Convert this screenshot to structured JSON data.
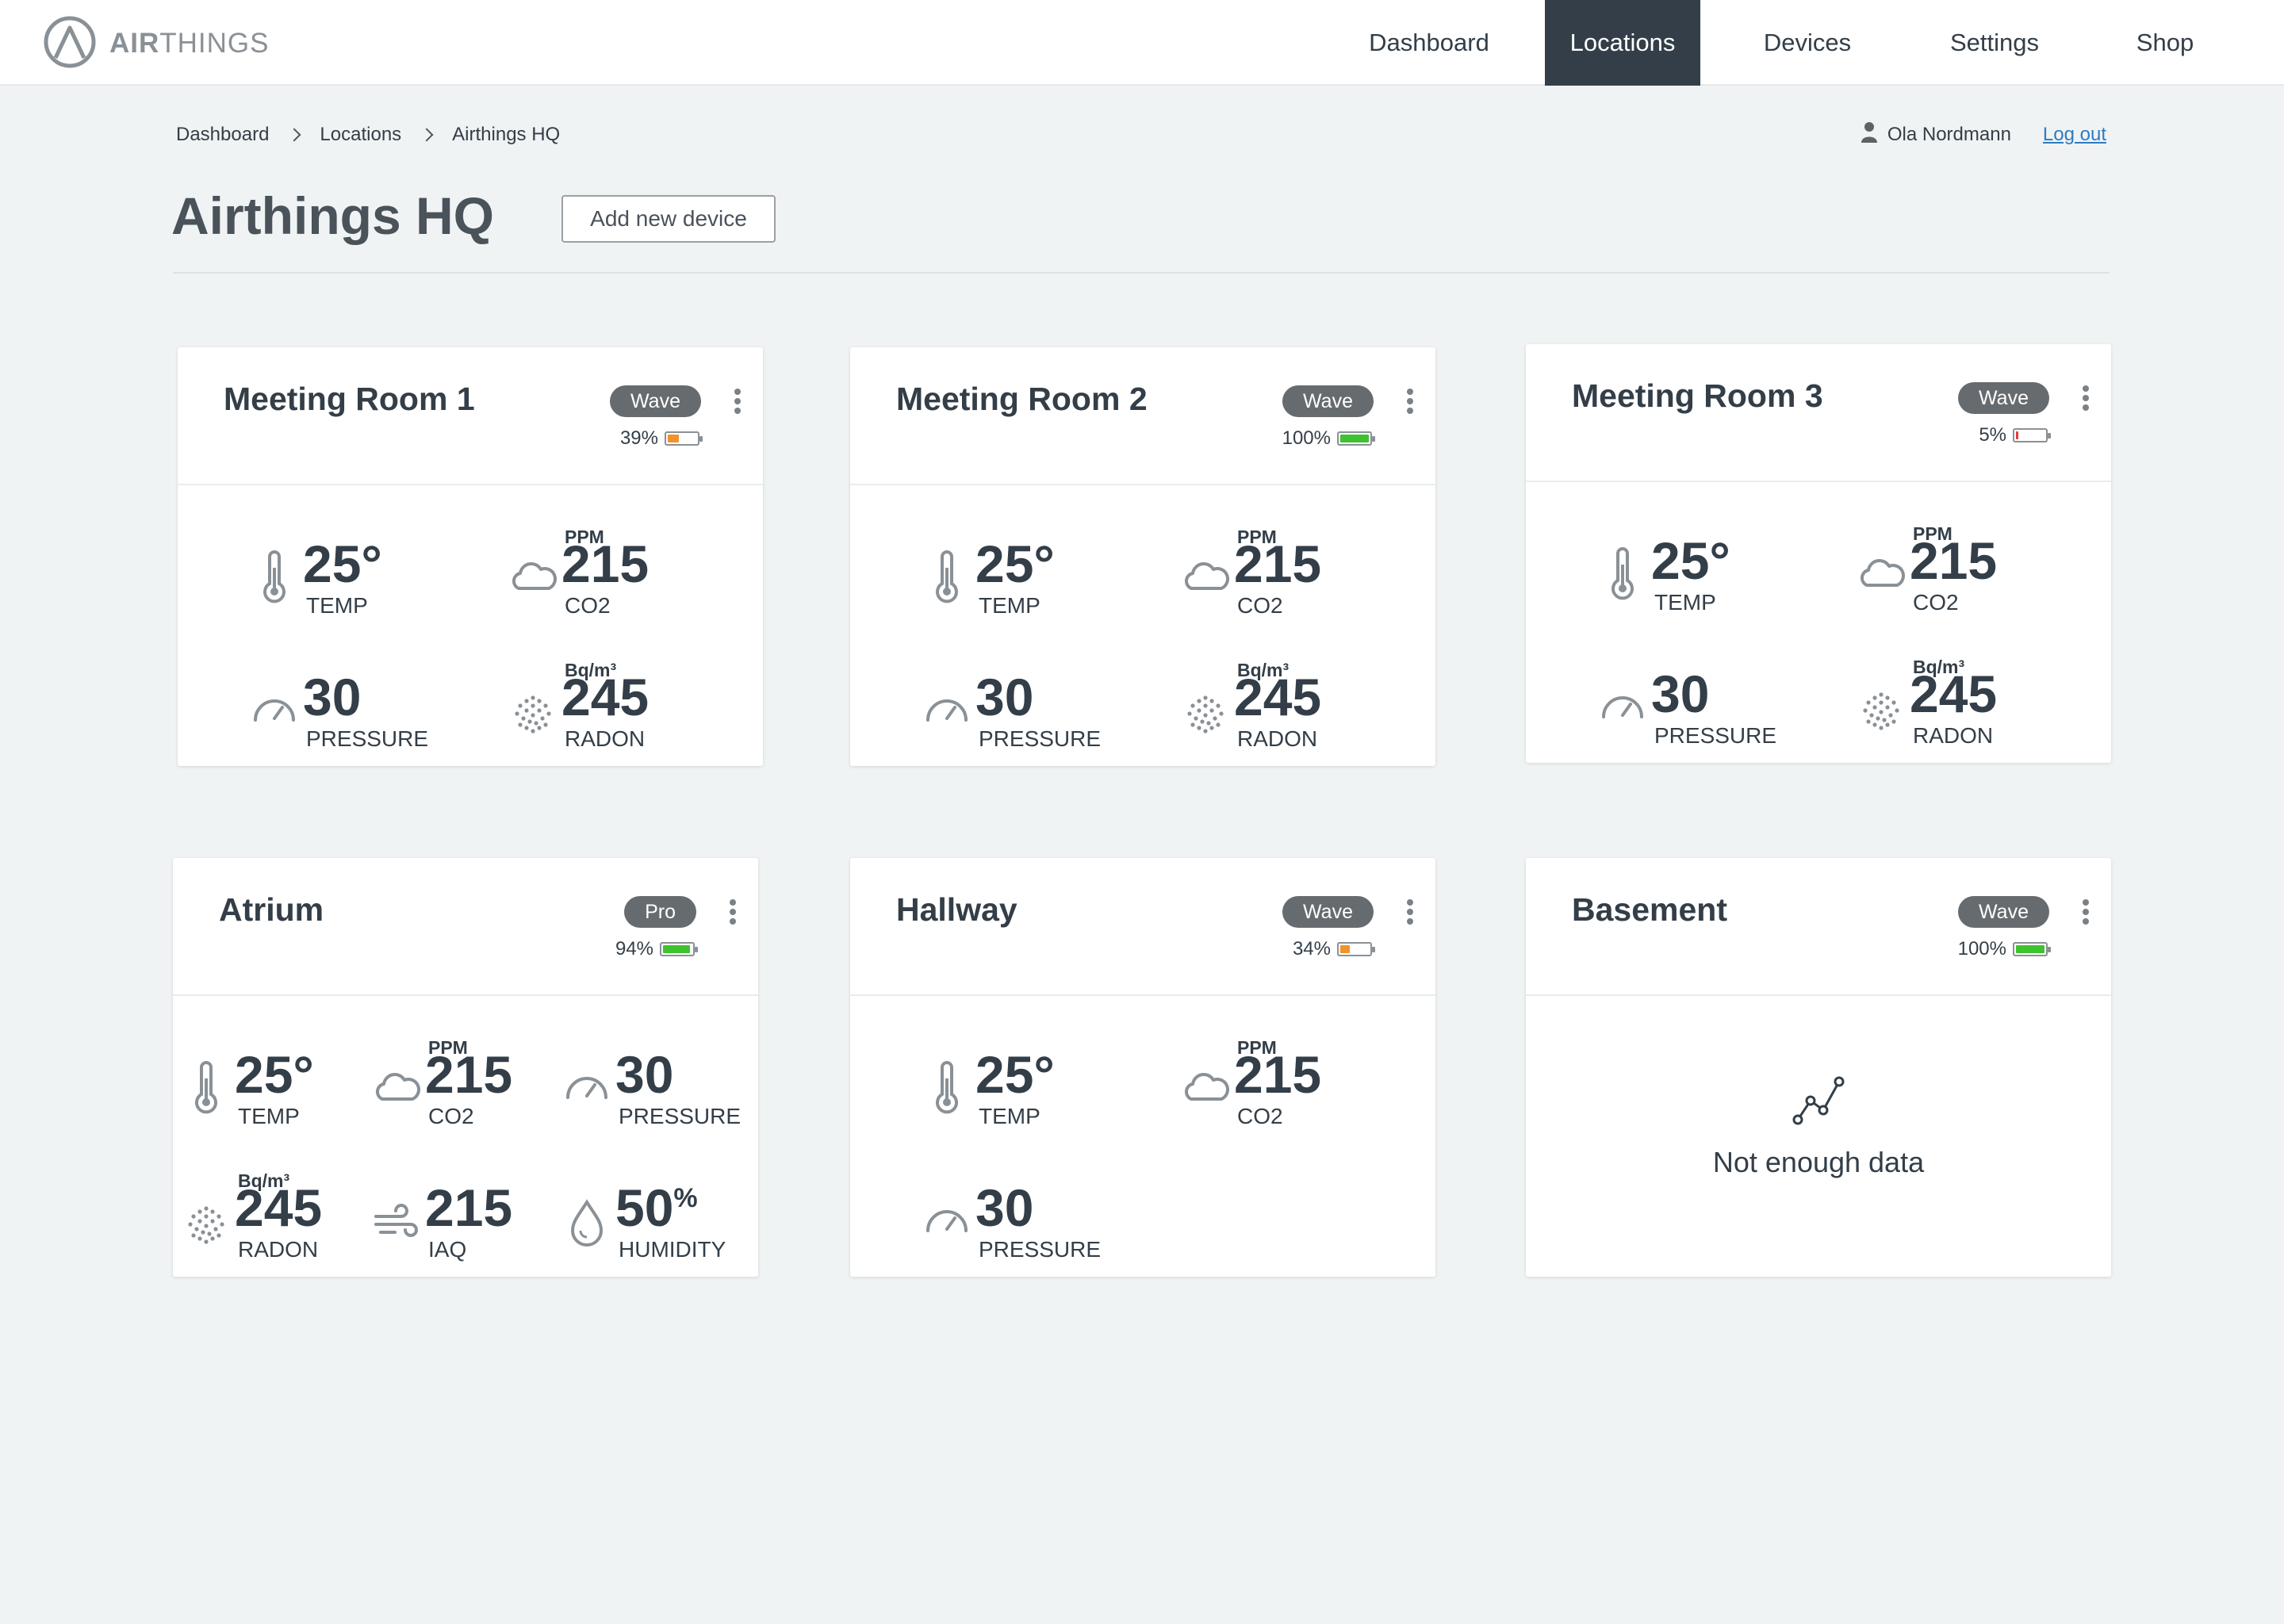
{
  "brand": {
    "logo_strong": "AIR",
    "logo_light": "THINGS"
  },
  "nav": {
    "items": [
      {
        "label": "Dashboard"
      },
      {
        "label": "Locations",
        "active": true
      },
      {
        "label": "Devices"
      },
      {
        "label": "Settings"
      },
      {
        "label": "Shop"
      }
    ]
  },
  "breadcrumb": [
    "Dashboard",
    "Locations",
    "Airthings HQ"
  ],
  "user": {
    "name": "Ola Nordmann",
    "logout_label": "Log out"
  },
  "page": {
    "title": "Airthings HQ",
    "add_device_label": "Add new device"
  },
  "cards": [
    {
      "title": "Meeting Room 1",
      "badge": "Wave",
      "battery_text": "39%",
      "battery_level": 0.39,
      "battery_color": "#f0932a",
      "temp": {
        "value": "25°",
        "label": "TEMP"
      },
      "co2": {
        "unit": "PPM",
        "value": "215",
        "label": "CO2"
      },
      "pressure": {
        "value": "30",
        "label": "PRESSURE"
      },
      "radon": {
        "unit": "Bq/m³",
        "value": "245",
        "label": "RADON"
      }
    },
    {
      "title": "Meeting Room 2",
      "badge": "Wave",
      "battery_text": "100%",
      "battery_level": 1.0,
      "battery_color": "#3fc22f",
      "temp": {
        "value": "25°",
        "label": "TEMP"
      },
      "co2": {
        "unit": "PPM",
        "value": "215",
        "label": "CO2"
      },
      "pressure": {
        "value": "30",
        "label": "PRESSURE"
      },
      "radon": {
        "unit": "Bq/m³",
        "value": "245",
        "label": "RADON"
      }
    },
    {
      "title": "Meeting Room 3",
      "badge": "Wave",
      "battery_text": "5%",
      "battery_level": 0.05,
      "battery_color": "#e23b3b",
      "temp": {
        "value": "25°",
        "label": "TEMP"
      },
      "co2": {
        "unit": "PPM",
        "value": "215",
        "label": "CO2"
      },
      "pressure": {
        "value": "30",
        "label": "PRESSURE"
      },
      "radon": {
        "unit": "Bq/m³",
        "value": "245",
        "label": "RADON"
      }
    },
    {
      "title": "Atrium",
      "badge": "Pro",
      "battery_text": "94%",
      "battery_level": 0.94,
      "battery_color": "#3fc22f",
      "temp": {
        "value": "25°",
        "label": "TEMP"
      },
      "co2": {
        "unit": "PPM",
        "value": "215",
        "label": "CO2"
      },
      "pressure": {
        "value": "30",
        "label": "PRESSURE"
      },
      "radon": {
        "unit": "Bq/m³",
        "value": "245",
        "label": "RADON"
      },
      "iaq": {
        "value": "215",
        "label": "IAQ"
      },
      "humidity": {
        "value": "50",
        "suffix": "%",
        "label": "HUMIDITY"
      }
    },
    {
      "title": "Hallway",
      "badge": "Wave",
      "battery_text": "34%",
      "battery_level": 0.34,
      "battery_color": "#f0932a",
      "temp": {
        "value": "25°",
        "label": "TEMP"
      },
      "co2": {
        "unit": "PPM",
        "value": "215",
        "label": "CO2"
      },
      "pressure": {
        "value": "30",
        "label": "PRESSURE"
      }
    },
    {
      "title": "Basement",
      "badge": "Wave",
      "battery_text": "100%",
      "battery_level": 1.0,
      "battery_color": "#3fc22f",
      "nodata_text": "Not enough data"
    }
  ],
  "icons": {
    "logo": "airthings-logo-icon",
    "user": "user-icon",
    "chevron": "chevron-right-icon",
    "temp": "thermometer-icon",
    "co2": "cloud-icon",
    "pressure": "gauge-icon",
    "radon": "radon-dots-icon",
    "iaq": "wind-icon",
    "humidity": "droplet-icon",
    "nodata": "line-chart-icon",
    "menu": "kebab-menu-icon",
    "battery": "battery-icon"
  }
}
